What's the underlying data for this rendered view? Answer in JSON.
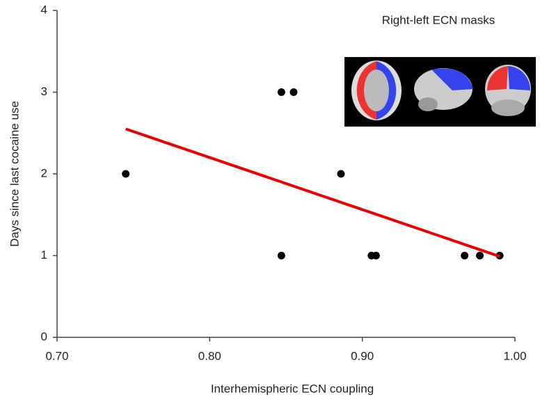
{
  "chart_data": {
    "type": "scatter",
    "annotation": "Right-left ECN masks",
    "x_label": "Interhemispheric ECN coupling",
    "y_label": "Days since last cocaine use",
    "x": [
      0.745,
      0.847,
      0.855,
      0.886,
      0.847,
      0.906,
      0.909,
      0.967,
      0.977,
      0.99
    ],
    "values": [
      2,
      3,
      3,
      2,
      1,
      1,
      1,
      1,
      1,
      1
    ],
    "color": "#000000",
    "trend": {
      "x": [
        0.745,
        0.99
      ],
      "y": [
        2.55,
        0.99
      ],
      "color": "#ee0000"
    },
    "xlim": [
      0.7,
      1.0
    ],
    "xticks": [
      {
        "value": 0.7,
        "label": "0.70"
      },
      {
        "value": 0.8,
        "label": "0.80"
      },
      {
        "value": 0.9,
        "label": "0.90"
      },
      {
        "value": 1.0,
        "label": "1.00"
      }
    ],
    "ylim": [
      0,
      4
    ],
    "yticks": [
      0,
      1,
      2,
      3,
      4
    ],
    "grid": false
  }
}
